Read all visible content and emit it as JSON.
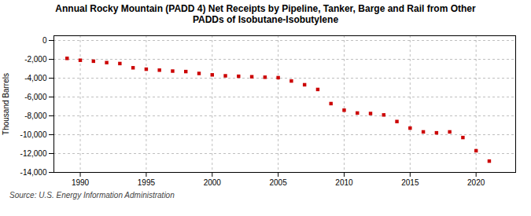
{
  "chart_data": {
    "type": "scatter",
    "title": "Annual Rocky Mountain (PADD 4) Net Receipts by Pipeline, Tanker, Barge and Rail from Other\nPADDs of Isobutane-Isobutylene",
    "ylabel": "Thousand Barrels",
    "source": "Source: U.S. Energy Information Administration",
    "x": [
      1989,
      1990,
      1991,
      1992,
      1993,
      1994,
      1995,
      1996,
      1997,
      1998,
      1999,
      2000,
      2001,
      2002,
      2003,
      2004,
      2005,
      2006,
      2007,
      2008,
      2009,
      2010,
      2011,
      2012,
      2013,
      2014,
      2015,
      2016,
      2017,
      2018,
      2019,
      2020,
      2021
    ],
    "values": [
      -1900,
      -2100,
      -2200,
      -2350,
      -2450,
      -2900,
      -3050,
      -3150,
      -3250,
      -3300,
      -3500,
      -3650,
      -3750,
      -3800,
      -3850,
      -3900,
      -3950,
      -4300,
      -4700,
      -5200,
      -6700,
      -7400,
      -7700,
      -7750,
      -7900,
      -8600,
      -9300,
      -9700,
      -9800,
      -9700,
      -10300,
      -11700,
      -12800
    ],
    "color": "#cc0000",
    "marker": "square",
    "grid": true,
    "xlim": [
      1988,
      2023
    ],
    "ylim": [
      -14000,
      500
    ],
    "xticks": [
      1990,
      1995,
      2000,
      2005,
      2010,
      2015,
      2020
    ],
    "yticks": [
      0,
      {
        "value": -2000,
        "label": "-2,000"
      },
      {
        "value": -4000,
        "label": "-4,000"
      },
      {
        "value": -6000,
        "label": "-6,000"
      },
      {
        "value": -8000,
        "label": "-8,000"
      },
      {
        "value": -10000,
        "label": "-10,000"
      },
      {
        "value": -12000,
        "label": "-12,000"
      },
      {
        "value": -14000,
        "label": "-14,000"
      }
    ]
  }
}
